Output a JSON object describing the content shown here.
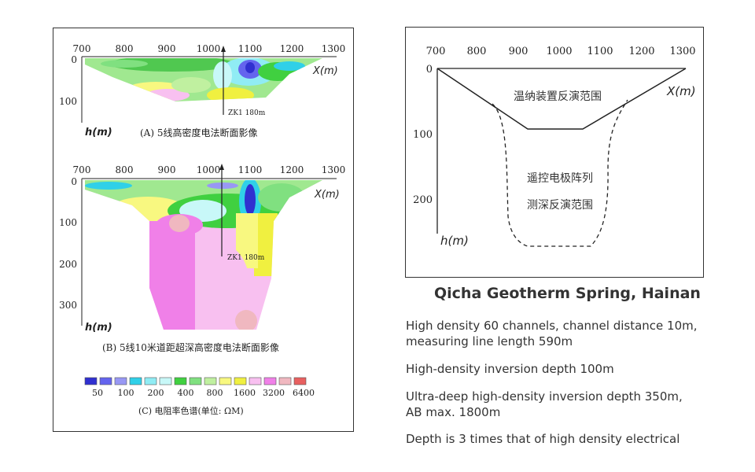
{
  "sectionA": {
    "x_ticks": [
      "700",
      "800",
      "900",
      "1000",
      "1100",
      "1200",
      "1300"
    ],
    "y_ticks": [
      "0",
      "100"
    ],
    "x_axis_label": "X(m)",
    "y_axis_label": "h(m)",
    "borehole_label": "ZK1  180m",
    "caption": "(A)  5线高密度电法断面影像"
  },
  "sectionB": {
    "x_ticks": [
      "700",
      "800",
      "900",
      "1000",
      "1100",
      "1200",
      "1300"
    ],
    "y_ticks": [
      "0",
      "100",
      "200",
      "300"
    ],
    "x_axis_label": "X(m)",
    "y_axis_label": "h(m)",
    "borehole_label": "ZK1  180m",
    "caption": "(B)  5线10米道距超深高密度电法断面影像"
  },
  "colorscale": {
    "colors": [
      "#3030d0",
      "#6464ee",
      "#9898f4",
      "#30d0e8",
      "#90ecf4",
      "#c8f8f8",
      "#40d040",
      "#80e080",
      "#c0f0a0",
      "#f8f880",
      "#f0f040",
      "#f8c0f0",
      "#f080e8",
      "#f0b8c0",
      "#e86060"
    ],
    "labels": [
      "50",
      "100",
      "200",
      "400",
      "800",
      "1600",
      "3200",
      "6400"
    ],
    "caption": "(C)  电阻率色谱(单位: ΩM)"
  },
  "diagram": {
    "x_ticks": [
      "700",
      "800",
      "900",
      "1000",
      "1100",
      "1200",
      "1300"
    ],
    "y_ticks": [
      "0",
      "100",
      "200"
    ],
    "x_axis_label": "X(m)",
    "y_axis_label": "h(m)",
    "label_shallow": "温纳装置反演范围",
    "label_deep_line1": "遥控电极阵列",
    "label_deep_line2": "测深反演范围"
  },
  "title": "Qicha Geotherm Spring, Hainan",
  "notes": {
    "line1": "High density 60 channels, channel distance 10m,",
    "line2": "measuring line length 590m",
    "line3": "High-density inversion depth 100m",
    "line4": "Ultra-deep high-density inversion depth 350m,",
    "line5": "AB max. 1800m",
    "line6": "Depth is 3 times that of high density electrical"
  }
}
